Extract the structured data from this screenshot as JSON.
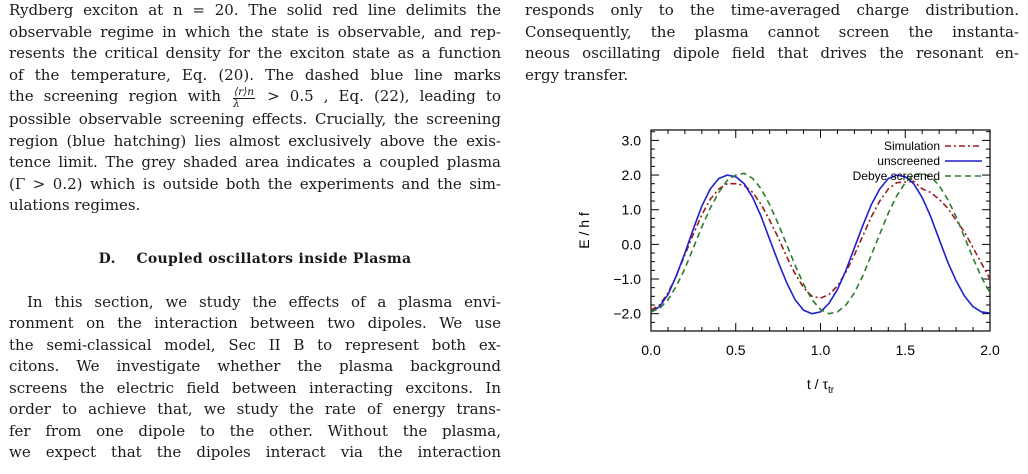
{
  "left_column": {
    "caption_lines": [
      "Rydberg exciton at n = 20. The solid red line delimits the",
      "observable regime in which the state is observable, and rep-",
      "resents the critical density for the exciton state as a function",
      "of the temperature, Eq. (20). The dashed blue line marks",
      "region (blue hatching) lies almost exclusively above the exis-",
      "tence limit. The grey shaded area indicates a coupled plasma",
      "(Γ > 0.2) which is outside both the experiments and the sim-",
      "ulations regimes."
    ],
    "screening_line": {
      "before": "the screening region with",
      "frac_num": "⟨r⟩n",
      "frac_den": "λ",
      "after": "> 0.5 , Eq. (22), leading to"
    },
    "screening_line_2": "possible observable screening effects. Crucially, the screening",
    "section": {
      "number": "D.",
      "title": "Coupled oscillators inside Plasma"
    },
    "body_lines": [
      "In this section, we study the effects of a plasma envi-",
      "ronment on the interaction between two dipoles. We use",
      "the semi-classical model, Sec II B to represent both ex-",
      "citons. We investigate whether the plasma background",
      "screens the electric field between interacting excitons. In",
      "order to achieve that, we study the rate of energy trans-",
      "fer from one dipole to the other. Without the plasma,",
      "we expect that the dipoles interact via the interaction"
    ]
  },
  "right_column": {
    "lines": [
      "responds only to the time-averaged charge distribution.",
      "Consequently, the plasma cannot screen the instanta-",
      "neous oscillating dipole field that drives the resonant en-",
      "ergy transfer."
    ]
  },
  "chart_data": {
    "type": "line",
    "title": "",
    "xlabel": "t / τ",
    "xlabel_sub": "tr",
    "ylabel": "E / h f",
    "xlim": [
      0,
      2
    ],
    "ylim": [
      -2.5,
      3.3
    ],
    "x_ticks": [
      0.0,
      0.5,
      1.0,
      1.5,
      2.0
    ],
    "x_tick_labels": [
      "0.0",
      "0.5",
      "1.0",
      "1.5",
      "2.0"
    ],
    "y_ticks": [
      -2,
      -1,
      0,
      1,
      2,
      3
    ],
    "y_tick_labels": [
      "−2.0",
      "−1.0",
      "0.0",
      "1.0",
      "2.0",
      "3.0"
    ],
    "grid": false,
    "legend_position": "top-right",
    "series": [
      {
        "name": "Simulation",
        "color": "#9b1c1c",
        "style": "dash-dot",
        "x": [
          0.0,
          0.05,
          0.1,
          0.15,
          0.2,
          0.25,
          0.3,
          0.35,
          0.4,
          0.45,
          0.5,
          0.55,
          0.6,
          0.65,
          0.7,
          0.75,
          0.8,
          0.85,
          0.9,
          0.95,
          1.0,
          1.05,
          1.1,
          1.15,
          1.2,
          1.25,
          1.3,
          1.35,
          1.4,
          1.45,
          1.5,
          1.55,
          1.6,
          1.65,
          1.7,
          1.75,
          1.8,
          1.85,
          1.9,
          1.95,
          2.0
        ],
        "y": [
          -1.9,
          -1.75,
          -1.4,
          -0.9,
          -0.3,
          0.3,
          0.85,
          1.3,
          1.6,
          1.75,
          1.75,
          1.7,
          1.5,
          1.15,
          0.7,
          0.2,
          -0.35,
          -0.85,
          -1.25,
          -1.5,
          -1.55,
          -1.45,
          -1.2,
          -0.8,
          -0.3,
          0.25,
          0.8,
          1.25,
          1.6,
          1.78,
          1.8,
          1.82,
          1.6,
          1.5,
          1.3,
          1.05,
          0.7,
          0.35,
          -0.1,
          -0.55,
          -1.0
        ]
      },
      {
        "name": "unscreened",
        "color": "#1f1fd0",
        "style": "solid",
        "x": [
          0.0,
          0.05,
          0.1,
          0.15,
          0.2,
          0.25,
          0.3,
          0.35,
          0.4,
          0.45,
          0.5,
          0.55,
          0.6,
          0.65,
          0.7,
          0.75,
          0.8,
          0.85,
          0.9,
          0.95,
          1.0,
          1.05,
          1.1,
          1.15,
          1.2,
          1.25,
          1.3,
          1.35,
          1.4,
          1.45,
          1.5,
          1.55,
          1.6,
          1.65,
          1.7,
          1.75,
          1.8,
          1.85,
          1.9,
          1.95,
          2.0
        ],
        "y": [
          -1.95,
          -1.8,
          -1.45,
          -0.9,
          -0.25,
          0.45,
          1.1,
          1.6,
          1.9,
          2.0,
          1.95,
          1.75,
          1.35,
          0.8,
          0.15,
          -0.5,
          -1.1,
          -1.6,
          -1.9,
          -2.0,
          -1.95,
          -1.7,
          -1.3,
          -0.75,
          -0.1,
          0.55,
          1.15,
          1.6,
          1.9,
          2.0,
          1.95,
          1.75,
          1.35,
          0.8,
          0.15,
          -0.5,
          -1.05,
          -1.5,
          -1.8,
          -1.95,
          -1.98
        ]
      },
      {
        "name": "Debye screened",
        "color": "#2e7d2e",
        "style": "dashed",
        "x": [
          0.0,
          0.05,
          0.1,
          0.15,
          0.2,
          0.25,
          0.3,
          0.35,
          0.4,
          0.45,
          0.5,
          0.55,
          0.6,
          0.65,
          0.7,
          0.75,
          0.8,
          0.85,
          0.9,
          0.95,
          1.0,
          1.05,
          1.1,
          1.15,
          1.2,
          1.25,
          1.3,
          1.35,
          1.4,
          1.45,
          1.5,
          1.55,
          1.6,
          1.65,
          1.7,
          1.75,
          1.8,
          1.85,
          1.9,
          1.95,
          2.0
        ],
        "y": [
          -1.95,
          -1.85,
          -1.6,
          -1.2,
          -0.7,
          -0.1,
          0.5,
          1.05,
          1.5,
          1.85,
          2.0,
          2.05,
          1.9,
          1.6,
          1.15,
          0.6,
          0.0,
          -0.6,
          -1.15,
          -1.6,
          -1.88,
          -2.0,
          -1.95,
          -1.75,
          -1.4,
          -0.9,
          -0.3,
          0.3,
          0.9,
          1.4,
          1.78,
          2.0,
          2.05,
          1.95,
          1.7,
          1.3,
          0.8,
          0.2,
          -0.4,
          -0.95,
          -1.4
        ]
      }
    ]
  }
}
